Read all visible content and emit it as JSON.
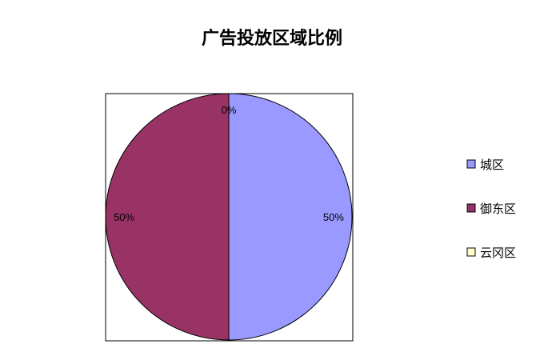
{
  "chart_data": {
    "type": "pie",
    "title": "广告投放区域比例",
    "categories": [
      "城区",
      "御东区",
      "云冈区"
    ],
    "values": [
      50,
      50,
      0
    ],
    "data_labels": [
      "50%",
      "50%",
      "0%"
    ],
    "colors": [
      "#9999FF",
      "#993366",
      "#FFFFCC"
    ],
    "legend": "right"
  }
}
